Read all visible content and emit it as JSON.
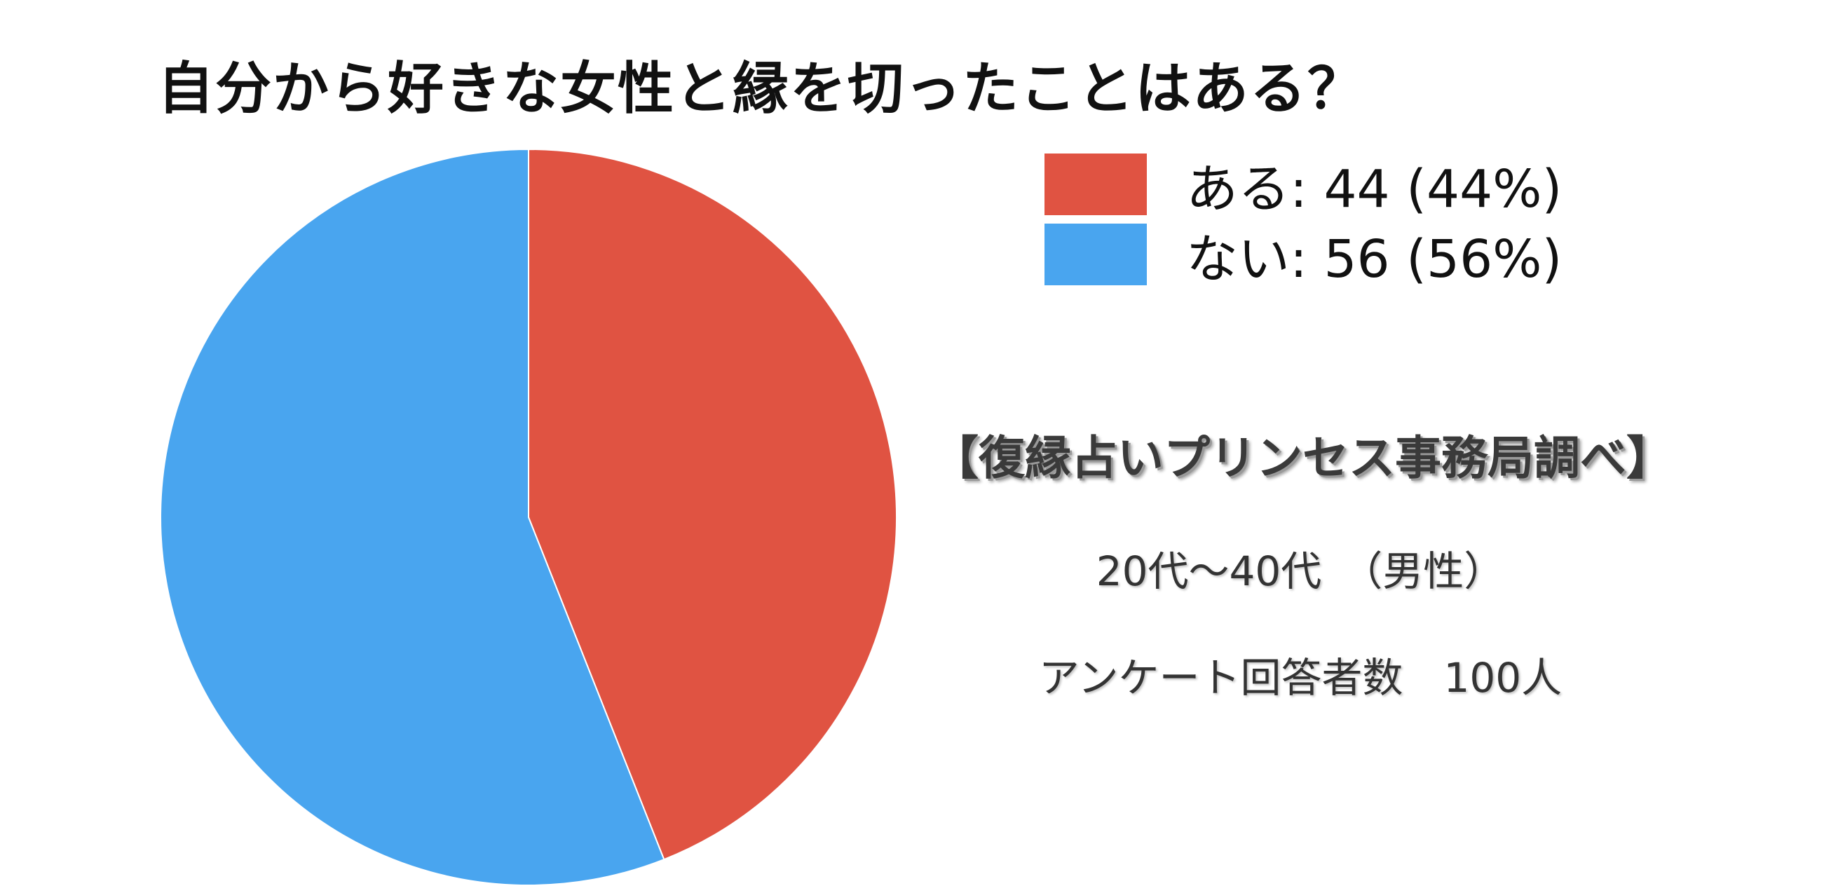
{
  "chart_data": {
    "type": "pie",
    "title": "自分から好きな女性と縁を切ったことはある？",
    "slices": [
      {
        "name": "ある",
        "value": 44,
        "percent": 44,
        "color": "#E05342",
        "legend_label": "ある: 44 (44%)"
      },
      {
        "name": "ない",
        "value": 56,
        "percent": 56,
        "color": "#49A5EF",
        "legend_label": "ない: 56 (56%)"
      }
    ],
    "start_angle_deg": 0,
    "direction": "clockwise",
    "legend_position": "top-right"
  },
  "annotations": {
    "source": "【復縁占いプリンセス事務局調べ】",
    "demographic": "20代〜40代　（男性）",
    "respondents": "アンケート回答者数　100人"
  }
}
